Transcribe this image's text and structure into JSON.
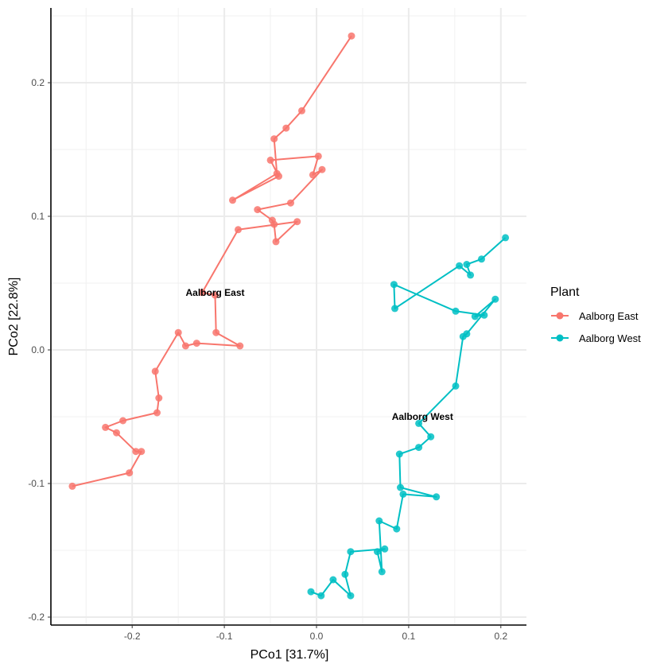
{
  "chart_data": {
    "type": "scatter",
    "title": "",
    "xlabel": "PCo1 [31.7%]",
    "ylabel": "PCo2 [22.8%]",
    "xlim": [
      -0.29,
      0.23
    ],
    "ylim": [
      -0.205,
      0.25
    ],
    "x_ticks": [
      -0.2,
      -0.1,
      0.0,
      0.1,
      0.2
    ],
    "x_tick_labels": [
      "-0.2",
      "-0.1",
      "0.0",
      "0.1",
      "0.2"
    ],
    "y_ticks": [
      -0.2,
      -0.1,
      0.0,
      0.1,
      0.2
    ],
    "y_tick_labels": [
      "-0.2",
      "-0.1",
      "0.0",
      "0.1",
      "0.2"
    ],
    "grid": true,
    "legend": {
      "title": "Plant",
      "placement": "right"
    },
    "series": [
      {
        "name": "Aalborg East",
        "color": "#F8766D",
        "label": "Aalborg East",
        "label_pos": [
          -0.11,
          0.043
        ],
        "points": [
          [
            0.038,
            0.235
          ],
          [
            -0.016,
            0.179
          ],
          [
            -0.033,
            0.166
          ],
          [
            -0.046,
            0.158
          ],
          [
            -0.043,
            0.132
          ],
          [
            -0.091,
            0.112
          ],
          [
            -0.041,
            0.13
          ],
          [
            -0.05,
            0.142
          ],
          [
            0.002,
            0.145
          ],
          [
            -0.004,
            0.131
          ],
          [
            0.006,
            0.135
          ],
          [
            -0.028,
            0.11
          ],
          [
            -0.064,
            0.105
          ],
          [
            -0.048,
            0.097
          ],
          [
            -0.046,
            0.094
          ],
          [
            -0.044,
            0.081
          ],
          [
            -0.021,
            0.096
          ],
          [
            -0.085,
            0.09
          ],
          [
            -0.124,
            0.043
          ],
          [
            -0.11,
            0.041
          ],
          [
            -0.109,
            0.013
          ],
          [
            -0.083,
            0.003
          ],
          [
            -0.13,
            0.005
          ],
          [
            -0.142,
            0.003
          ],
          [
            -0.15,
            0.013
          ],
          [
            -0.175,
            -0.016
          ],
          [
            -0.171,
            -0.036
          ],
          [
            -0.173,
            -0.047
          ],
          [
            -0.21,
            -0.053
          ],
          [
            -0.229,
            -0.058
          ],
          [
            -0.217,
            -0.062
          ],
          [
            -0.196,
            -0.076
          ],
          [
            -0.19,
            -0.076
          ],
          [
            -0.203,
            -0.092
          ],
          [
            -0.265,
            -0.102
          ]
        ]
      },
      {
        "name": "Aalborg West",
        "color": "#00BFC4",
        "label": "Aalborg West",
        "label_pos": [
          0.115,
          -0.05
        ],
        "points": [
          [
            0.205,
            0.084
          ],
          [
            0.179,
            0.068
          ],
          [
            0.163,
            0.064
          ],
          [
            0.167,
            0.056
          ],
          [
            0.155,
            0.063
          ],
          [
            0.085,
            0.031
          ],
          [
            0.084,
            0.049
          ],
          [
            0.151,
            0.029
          ],
          [
            0.182,
            0.026
          ],
          [
            0.172,
            0.025
          ],
          [
            0.194,
            0.038
          ],
          [
            0.163,
            0.012
          ],
          [
            0.159,
            0.01
          ],
          [
            0.151,
            -0.027
          ],
          [
            0.111,
            -0.055
          ],
          [
            0.124,
            -0.065
          ],
          [
            0.111,
            -0.073
          ],
          [
            0.09,
            -0.078
          ],
          [
            0.091,
            -0.103
          ],
          [
            0.13,
            -0.11
          ],
          [
            0.094,
            -0.108
          ],
          [
            0.087,
            -0.134
          ],
          [
            0.068,
            -0.128
          ],
          [
            0.071,
            -0.166
          ],
          [
            0.066,
            -0.151
          ],
          [
            0.074,
            -0.149
          ],
          [
            0.037,
            -0.151
          ],
          [
            0.031,
            -0.168
          ],
          [
            0.037,
            -0.184
          ],
          [
            0.018,
            -0.172
          ],
          [
            0.005,
            -0.184
          ],
          [
            -0.006,
            -0.181
          ]
        ]
      }
    ]
  }
}
